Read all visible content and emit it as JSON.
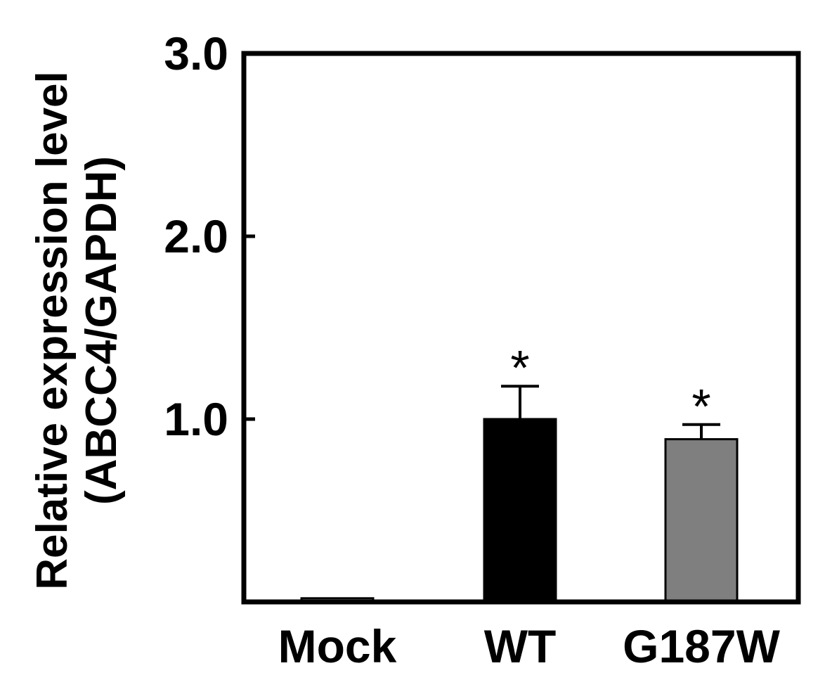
{
  "chart_data": {
    "type": "bar",
    "categories": [
      "Mock",
      "WT",
      "G187W"
    ],
    "values": [
      0.02,
      1.0,
      0.89
    ],
    "errors": [
      0.01,
      0.18,
      0.08
    ],
    "annotations": [
      "",
      "*",
      "*"
    ],
    "colors": [
      "#ffffff",
      "#000000",
      "#7f7f7f"
    ],
    "ylabel_lines": [
      "Relative expression level",
      "(ABCC4/GAPDH)"
    ],
    "ylim": [
      0,
      3.0
    ],
    "yticks": [
      1.0,
      2.0,
      3.0
    ],
    "ytick_labels": [
      "1.0",
      "2.0",
      "3.0"
    ],
    "grid": false
  }
}
